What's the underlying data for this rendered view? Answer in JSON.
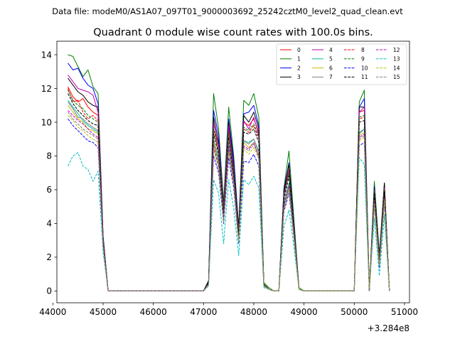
{
  "figure": {
    "suptitle": "Data file: modeM0/AS1A07_097T01_9000003692_25242cztM0_level2_quad_clean.evt",
    "title": "Quadrant 0 module wise count rates with 100.0s bins.",
    "x_offset_label": "+3.284e8"
  },
  "chart_data": {
    "type": "line",
    "xlim": [
      44080,
      51100
    ],
    "ylim": [
      -0.7,
      14.8
    ],
    "x_ticks": [
      44000,
      45000,
      46000,
      47000,
      48000,
      49000,
      50000,
      51000
    ],
    "x_tick_labels": [
      "44000",
      "45000",
      "46000",
      "47000",
      "48000",
      "49000",
      "50000",
      "51000"
    ],
    "y_ticks": [
      0,
      2,
      4,
      6,
      8,
      10,
      12,
      14
    ],
    "y_tick_labels": [
      "0",
      "2",
      "4",
      "6",
      "8",
      "10",
      "12",
      "14"
    ],
    "grid": false,
    "legend_position": "top-right",
    "legend_columns": 4,
    "x": [
      44300,
      44400,
      44500,
      44600,
      44700,
      44800,
      44900,
      45000,
      45100,
      45200,
      45300,
      45400,
      45500,
      45600,
      45700,
      45800,
      45900,
      46000,
      46100,
      46200,
      46300,
      46400,
      46500,
      46600,
      46700,
      46800,
      46900,
      47000,
      47100,
      47200,
      47300,
      47400,
      47500,
      47600,
      47700,
      47800,
      47900,
      48000,
      48100,
      48200,
      48300,
      48400,
      48500,
      48600,
      48700,
      48800,
      48900,
      49000,
      49100,
      49200,
      49300,
      49400,
      49500,
      49600,
      49700,
      49800,
      49900,
      50000,
      50100,
      50200,
      50300,
      50400,
      50500,
      50600,
      50700
    ],
    "series": [
      {
        "name": "0",
        "color": "#ff0000",
        "dash": "solid",
        "values": [
          12.1,
          11.5,
          11.2,
          11.4,
          10.9,
          10.6,
          10.4,
          3.1,
          0,
          0,
          0,
          0,
          0,
          0,
          0,
          0,
          0,
          0,
          0,
          0,
          0,
          0,
          0,
          0,
          0,
          0,
          0,
          0,
          0.5,
          10.0,
          8.2,
          5.1,
          9.6,
          7.2,
          3.6,
          10.0,
          9.8,
          10.2,
          9.4,
          0.4,
          0.1,
          0,
          0,
          5.8,
          7.2,
          3.8,
          0.1,
          0,
          0,
          0,
          0,
          0,
          0,
          0,
          0,
          0,
          0,
          0,
          10.6,
          10.7,
          0,
          6.0,
          1.9,
          6.2,
          0
        ]
      },
      {
        "name": "1",
        "color": "#008000",
        "dash": "solid",
        "values": [
          14.0,
          13.9,
          13.3,
          12.7,
          13.1,
          12.1,
          11.7,
          3.3,
          0,
          0,
          0,
          0,
          0,
          0,
          0,
          0,
          0,
          0,
          0,
          0,
          0,
          0,
          0,
          0,
          0,
          0,
          0,
          0,
          0.6,
          11.7,
          9.6,
          5.3,
          10.9,
          8.0,
          3.8,
          11.3,
          11.0,
          11.7,
          10.3,
          0.5,
          0.2,
          0,
          0,
          6.1,
          8.3,
          4.2,
          0.2,
          0,
          0,
          0,
          0,
          0,
          0,
          0,
          0,
          0,
          0,
          0,
          11.2,
          11.9,
          0,
          6.5,
          2.2,
          6.4,
          0
        ]
      },
      {
        "name": "2",
        "color": "#0000ff",
        "dash": "solid",
        "values": [
          13.5,
          13.1,
          13.2,
          12.6,
          12.2,
          12.0,
          11.1,
          3.2,
          0,
          0,
          0,
          0,
          0,
          0,
          0,
          0,
          0,
          0,
          0,
          0,
          0,
          0,
          0,
          0,
          0,
          0,
          0,
          0,
          0.6,
          10.7,
          9.2,
          5.0,
          10.2,
          7.8,
          3.7,
          10.5,
          10.6,
          11.0,
          9.8,
          0.4,
          0.1,
          0,
          0,
          6.0,
          7.6,
          4.0,
          0.1,
          0,
          0,
          0,
          0,
          0,
          0,
          0,
          0,
          0,
          0,
          0,
          10.9,
          11.4,
          0,
          6.2,
          2.0,
          6.3,
          0
        ]
      },
      {
        "name": "3",
        "color": "#000000",
        "dash": "solid",
        "values": [
          12.6,
          12.2,
          11.8,
          11.6,
          11.2,
          11.0,
          10.9,
          3.2,
          0,
          0,
          0,
          0,
          0,
          0,
          0,
          0,
          0,
          0,
          0,
          0,
          0,
          0,
          0,
          0,
          0,
          0,
          0,
          0,
          0.6,
          10.3,
          8.8,
          5.0,
          10.0,
          7.5,
          3.6,
          10.4,
          10.0,
          10.6,
          9.6,
          0.4,
          0.1,
          0,
          0,
          5.9,
          7.5,
          3.9,
          0.1,
          0,
          0,
          0,
          0,
          0,
          0,
          0,
          0,
          0,
          0,
          0,
          10.9,
          10.9,
          0,
          6.1,
          2.0,
          6.4,
          0
        ]
      },
      {
        "name": "4",
        "color": "#bf00bf",
        "dash": "solid",
        "values": [
          12.8,
          12.4,
          12.0,
          11.9,
          11.8,
          11.6,
          10.6,
          3.1,
          0,
          0,
          0,
          0,
          0,
          0,
          0,
          0,
          0,
          0,
          0,
          0,
          0,
          0,
          0,
          0,
          0,
          0,
          0,
          0,
          0.5,
          9.9,
          8.6,
          5.0,
          9.8,
          7.3,
          3.5,
          10.1,
          9.6,
          10.3,
          9.2,
          0.4,
          0.1,
          0,
          0,
          5.7,
          7.1,
          3.8,
          0.1,
          0,
          0,
          0,
          0,
          0,
          0,
          0,
          0,
          0,
          0,
          0,
          10.6,
          10.9,
          0,
          6.0,
          1.9,
          6.1,
          0
        ]
      },
      {
        "name": "5",
        "color": "#00bfa0",
        "dash": "solid",
        "values": [
          11.3,
          10.9,
          10.5,
          10.1,
          9.8,
          9.6,
          9.4,
          2.9,
          0,
          0,
          0,
          0,
          0,
          0,
          0,
          0,
          0,
          0,
          0,
          0,
          0,
          0,
          0,
          0,
          0,
          0,
          0,
          0,
          0.4,
          8.9,
          7.9,
          4.3,
          8.7,
          6.8,
          3.1,
          8.9,
          8.8,
          9.0,
          8.3,
          0.3,
          0.1,
          0,
          0,
          5.2,
          6.4,
          3.4,
          0.1,
          0,
          0,
          0,
          0,
          0,
          0,
          0,
          0,
          0,
          0,
          0,
          9.4,
          9.6,
          0,
          5.6,
          1.6,
          5.8,
          0
        ]
      },
      {
        "name": "6",
        "color": "#bfbf00",
        "dash": "solid",
        "values": [
          11.0,
          10.6,
          10.2,
          10.0,
          9.6,
          9.5,
          9.3,
          2.8,
          0,
          0,
          0,
          0,
          0,
          0,
          0,
          0,
          0,
          0,
          0,
          0,
          0,
          0,
          0,
          0,
          0,
          0,
          0,
          0,
          0.4,
          8.8,
          7.6,
          4.2,
          8.5,
          6.6,
          3.0,
          8.8,
          8.5,
          8.8,
          8.0,
          0.3,
          0.1,
          0,
          0,
          5.0,
          6.2,
          3.3,
          0.1,
          0,
          0,
          0,
          0,
          0,
          0,
          0,
          0,
          0,
          0,
          0,
          9.2,
          9.4,
          0,
          5.4,
          1.5,
          5.6,
          0
        ]
      },
      {
        "name": "7",
        "color": "#808080",
        "dash": "solid",
        "values": [
          11.2,
          10.8,
          10.3,
          10.2,
          9.9,
          9.7,
          9.5,
          2.9,
          0,
          0,
          0,
          0,
          0,
          0,
          0,
          0,
          0,
          0,
          0,
          0,
          0,
          0,
          0,
          0,
          0,
          0,
          0,
          0,
          0.4,
          9.0,
          7.7,
          4.4,
          8.7,
          6.8,
          3.1,
          8.9,
          8.7,
          9.0,
          8.2,
          0.3,
          0.1,
          0,
          0,
          5.1,
          6.3,
          3.4,
          0.1,
          0,
          0,
          0,
          0,
          0,
          0,
          0,
          0,
          0,
          0,
          0,
          9.3,
          9.6,
          0,
          5.5,
          1.6,
          5.7,
          0
        ]
      },
      {
        "name": "8",
        "color": "#ff0000",
        "dash": "dashed",
        "values": [
          12.0,
          11.2,
          11.3,
          10.6,
          10.2,
          10.4,
          10.1,
          3.0,
          0,
          0,
          0,
          0,
          0,
          0,
          0,
          0,
          0,
          0,
          0,
          0,
          0,
          0,
          0,
          0,
          0,
          0,
          0,
          0,
          0.5,
          9.5,
          8.3,
          4.8,
          9.3,
          7.0,
          3.4,
          9.6,
          9.4,
          9.8,
          9.0,
          0.4,
          0.1,
          0,
          0,
          5.6,
          6.9,
          3.7,
          0.1,
          0,
          0,
          0,
          0,
          0,
          0,
          0,
          0,
          0,
          0,
          0,
          10.2,
          10.3,
          0,
          5.8,
          1.8,
          6.0,
          0
        ]
      },
      {
        "name": "9",
        "color": "#008000",
        "dash": "dashed",
        "values": [
          11.9,
          11.3,
          11.0,
          10.8,
          10.4,
          10.2,
          10.0,
          3.0,
          0,
          0,
          0,
          0,
          0,
          0,
          0,
          0,
          0,
          0,
          0,
          0,
          0,
          0,
          0,
          0,
          0,
          0,
          0,
          0,
          0.5,
          9.6,
          8.4,
          4.9,
          9.4,
          7.1,
          3.4,
          9.7,
          9.5,
          9.9,
          9.1,
          0.4,
          0.1,
          0,
          0,
          5.6,
          7.0,
          3.7,
          0.1,
          0,
          0,
          0,
          0,
          0,
          0,
          0,
          0,
          0,
          0,
          0,
          10.3,
          10.4,
          0,
          5.9,
          1.8,
          6.0,
          0
        ]
      },
      {
        "name": "10",
        "color": "#0000ff",
        "dash": "dashed",
        "values": [
          10.2,
          9.8,
          9.5,
          9.2,
          8.9,
          8.8,
          8.5,
          2.6,
          0,
          0,
          0,
          0,
          0,
          0,
          0,
          0,
          0,
          0,
          0,
          0,
          0,
          0,
          0,
          0,
          0,
          0,
          0,
          0,
          0.4,
          8.0,
          7.0,
          4.0,
          7.9,
          6.1,
          2.8,
          7.7,
          7.6,
          8.1,
          7.4,
          0.3,
          0.1,
          0,
          0,
          4.7,
          5.8,
          3.1,
          0.1,
          0,
          0,
          0,
          0,
          0,
          0,
          0,
          0,
          0,
          0,
          0,
          8.6,
          8.8,
          0,
          5.1,
          1.4,
          5.2,
          0
        ]
      },
      {
        "name": "11",
        "color": "#000000",
        "dash": "dashed",
        "values": [
          11.7,
          11.1,
          10.7,
          10.4,
          10.1,
          9.9,
          9.8,
          3.0,
          0,
          0,
          0,
          0,
          0,
          0,
          0,
          0,
          0,
          0,
          0,
          0,
          0,
          0,
          0,
          0,
          0,
          0,
          0,
          0,
          0.5,
          9.3,
          8.1,
          4.6,
          9.1,
          6.9,
          3.3,
          9.4,
          9.3,
          9.6,
          8.8,
          0.4,
          0.1,
          0,
          0,
          5.4,
          6.8,
          3.6,
          0.1,
          0,
          0,
          0,
          0,
          0,
          0,
          0,
          0,
          0,
          0,
          0,
          10.0,
          10.1,
          0,
          5.8,
          1.7,
          5.9,
          0
        ]
      },
      {
        "name": "12",
        "color": "#bf00bf",
        "dash": "dashed",
        "values": [
          10.7,
          10.4,
          10.1,
          9.9,
          9.6,
          9.3,
          9.1,
          2.8,
          0,
          0,
          0,
          0,
          0,
          0,
          0,
          0,
          0,
          0,
          0,
          0,
          0,
          0,
          0,
          0,
          0,
          0,
          0,
          0,
          0.4,
          8.6,
          7.5,
          4.3,
          8.5,
          6.5,
          3.0,
          8.6,
          8.4,
          8.8,
          8.0,
          0.3,
          0.1,
          0,
          0,
          5.0,
          6.2,
          3.3,
          0.1,
          0,
          0,
          0,
          0,
          0,
          0,
          0,
          0,
          0,
          0,
          0,
          9.1,
          9.3,
          0,
          5.3,
          1.5,
          5.5,
          0
        ]
      },
      {
        "name": "13",
        "color": "#00bfbf",
        "dash": "dashed",
        "values": [
          7.4,
          8.0,
          8.2,
          7.4,
          7.2,
          6.5,
          7.1,
          2.3,
          0,
          0,
          0,
          0,
          0,
          0,
          0,
          0,
          0,
          0,
          0,
          0,
          0,
          0,
          0,
          0,
          0,
          0,
          0,
          0,
          0.3,
          6.6,
          5.8,
          2.8,
          6.6,
          4.9,
          2.1,
          6.6,
          6.3,
          6.8,
          6.1,
          0.2,
          0.1,
          0,
          0,
          3.8,
          4.8,
          2.6,
          0.1,
          0,
          0,
          0,
          0,
          0,
          0,
          0,
          0,
          0,
          0,
          0,
          7.9,
          7.5,
          0,
          4.3,
          0.9,
          4.5,
          0
        ]
      },
      {
        "name": "14",
        "color": "#bfbf00",
        "dash": "dashed",
        "values": [
          10.4,
          10.1,
          9.7,
          9.5,
          9.2,
          9.0,
          8.8,
          2.7,
          0,
          0,
          0,
          0,
          0,
          0,
          0,
          0,
          0,
          0,
          0,
          0,
          0,
          0,
          0,
          0,
          0,
          0,
          0,
          0,
          0.4,
          8.4,
          7.2,
          4.1,
          8.2,
          6.3,
          2.9,
          8.4,
          8.1,
          8.5,
          7.8,
          0.3,
          0.1,
          0,
          0,
          4.8,
          6.0,
          3.2,
          0.1,
          0,
          0,
          0,
          0,
          0,
          0,
          0,
          0,
          0,
          0,
          0,
          8.9,
          9.1,
          0,
          5.2,
          1.5,
          5.4,
          0
        ]
      },
      {
        "name": "15",
        "color": "#808080",
        "dash": "dashed",
        "values": [
          10.6,
          10.2,
          9.9,
          9.6,
          9.4,
          9.2,
          9.0,
          2.7,
          0,
          0,
          0,
          0,
          0,
          0,
          0,
          0,
          0,
          0,
          0,
          0,
          0,
          0,
          0,
          0,
          0,
          0,
          0,
          0,
          0.4,
          8.5,
          7.3,
          4.2,
          8.4,
          6.4,
          2.9,
          8.5,
          8.3,
          8.7,
          7.9,
          0.3,
          0.1,
          0,
          0,
          4.9,
          6.1,
          3.2,
          0.1,
          0,
          0,
          0,
          0,
          0,
          0,
          0,
          0,
          0,
          0,
          0,
          9.0,
          9.2,
          0,
          5.2,
          1.5,
          5.4,
          0
        ]
      }
    ]
  }
}
